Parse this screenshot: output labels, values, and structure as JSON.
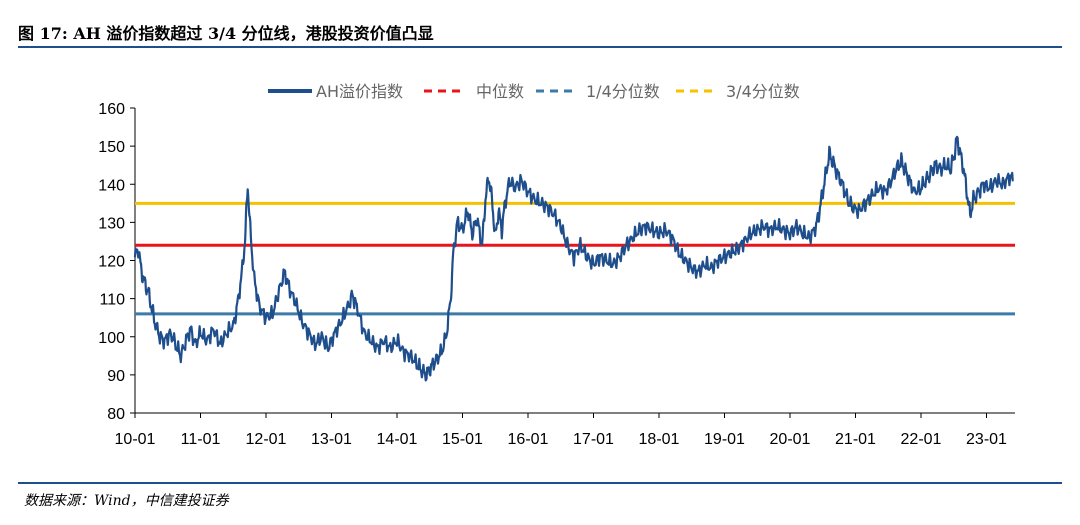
{
  "header": {
    "figure_label": "图 17:",
    "title": "AH 溢价指数超过 3/4 分位线，港股投资价值凸显"
  },
  "source": "数据来源：Wind，中信建投证券",
  "colors": {
    "series": "#1f4e8c",
    "median": "#e8141c",
    "q1": "#3b7ba9",
    "q3": "#f5c100",
    "rule": "#1f4e8c"
  },
  "chart_data": {
    "type": "line",
    "ylim": [
      80,
      160
    ],
    "yticks": [
      "80",
      "90",
      "100",
      "110",
      "120",
      "130",
      "140",
      "150",
      "160"
    ],
    "categories": [
      "10-01",
      "11-01",
      "12-01",
      "13-01",
      "14-01",
      "15-01",
      "16-01",
      "17-01",
      "18-01",
      "19-01",
      "20-01",
      "21-01",
      "22-01",
      "23-01"
    ],
    "legend": {
      "series": "AH溢价指数",
      "median": "中位数",
      "q1": "1/4分位数",
      "q3": "3/4分位数"
    },
    "reference_lines": {
      "median": 124,
      "q1": 106,
      "q3": 135
    },
    "series_name": "AH溢价指数",
    "series": [
      [
        0.0,
        121
      ],
      [
        0.05,
        123
      ],
      [
        0.1,
        117
      ],
      [
        0.15,
        114
      ],
      [
        0.2,
        112
      ],
      [
        0.25,
        108
      ],
      [
        0.3,
        104
      ],
      [
        0.38,
        100
      ],
      [
        0.45,
        99
      ],
      [
        0.55,
        101
      ],
      [
        0.62,
        98
      ],
      [
        0.7,
        95
      ],
      [
        0.78,
        99
      ],
      [
        0.85,
        102
      ],
      [
        0.92,
        98
      ],
      [
        1.0,
        101
      ],
      [
        1.1,
        99
      ],
      [
        1.2,
        102
      ],
      [
        1.3,
        98
      ],
      [
        1.4,
        101
      ],
      [
        1.5,
        103
      ],
      [
        1.55,
        107
      ],
      [
        1.62,
        115
      ],
      [
        1.68,
        125
      ],
      [
        1.72,
        140
      ],
      [
        1.76,
        128
      ],
      [
        1.82,
        115
      ],
      [
        1.9,
        108
      ],
      [
        2.0,
        105
      ],
      [
        2.1,
        106
      ],
      [
        2.2,
        112
      ],
      [
        2.28,
        117
      ],
      [
        2.35,
        113
      ],
      [
        2.45,
        109
      ],
      [
        2.55,
        104
      ],
      [
        2.65,
        101
      ],
      [
        2.75,
        98
      ],
      [
        2.85,
        100
      ],
      [
        2.95,
        97
      ],
      [
        3.05,
        101
      ],
      [
        3.15,
        104
      ],
      [
        3.25,
        108
      ],
      [
        3.32,
        111
      ],
      [
        3.4,
        107
      ],
      [
        3.5,
        101
      ],
      [
        3.6,
        99
      ],
      [
        3.7,
        97
      ],
      [
        3.8,
        99
      ],
      [
        3.9,
        97
      ],
      [
        4.0,
        99
      ],
      [
        4.1,
        96
      ],
      [
        4.2,
        95
      ],
      [
        4.3,
        93
      ],
      [
        4.38,
        91
      ],
      [
        4.45,
        90
      ],
      [
        4.52,
        92
      ],
      [
        4.6,
        94
      ],
      [
        4.68,
        96
      ],
      [
        4.75,
        100
      ],
      [
        4.82,
        110
      ],
      [
        4.86,
        122
      ],
      [
        4.92,
        130
      ],
      [
        5.0,
        128
      ],
      [
        5.08,
        133
      ],
      [
        5.15,
        127
      ],
      [
        5.22,
        131
      ],
      [
        5.3,
        124
      ],
      [
        5.35,
        136
      ],
      [
        5.4,
        142
      ],
      [
        5.45,
        136
      ],
      [
        5.5,
        126
      ],
      [
        5.55,
        133
      ],
      [
        5.6,
        128
      ],
      [
        5.65,
        135
      ],
      [
        5.72,
        141
      ],
      [
        5.8,
        139
      ],
      [
        5.9,
        141
      ],
      [
        6.0,
        138
      ],
      [
        6.1,
        136
      ],
      [
        6.2,
        135
      ],
      [
        6.3,
        134
      ],
      [
        6.4,
        132
      ],
      [
        6.5,
        129
      ],
      [
        6.6,
        124
      ],
      [
        6.7,
        121
      ],
      [
        6.8,
        124
      ],
      [
        6.9,
        121
      ],
      [
        7.0,
        119
      ],
      [
        7.1,
        121
      ],
      [
        7.2,
        120
      ],
      [
        7.3,
        119
      ],
      [
        7.4,
        121
      ],
      [
        7.5,
        124
      ],
      [
        7.6,
        126
      ],
      [
        7.7,
        128
      ],
      [
        7.8,
        129
      ],
      [
        7.9,
        128
      ],
      [
        8.0,
        127
      ],
      [
        8.1,
        128
      ],
      [
        8.2,
        126
      ],
      [
        8.3,
        122
      ],
      [
        8.4,
        120
      ],
      [
        8.5,
        118
      ],
      [
        8.6,
        117
      ],
      [
        8.7,
        119
      ],
      [
        8.8,
        118
      ],
      [
        8.9,
        120
      ],
      [
        9.0,
        121
      ],
      [
        9.1,
        122
      ],
      [
        9.2,
        123
      ],
      [
        9.3,
        125
      ],
      [
        9.4,
        127
      ],
      [
        9.5,
        128
      ],
      [
        9.6,
        129
      ],
      [
        9.7,
        128
      ],
      [
        9.8,
        129
      ],
      [
        9.9,
        128
      ],
      [
        10.0,
        127
      ],
      [
        10.1,
        129
      ],
      [
        10.2,
        127
      ],
      [
        10.3,
        126
      ],
      [
        10.4,
        129
      ],
      [
        10.45,
        133
      ],
      [
        10.5,
        138
      ],
      [
        10.55,
        143
      ],
      [
        10.6,
        148
      ],
      [
        10.65,
        146
      ],
      [
        10.72,
        143
      ],
      [
        10.8,
        140
      ],
      [
        10.88,
        136
      ],
      [
        10.95,
        134
      ],
      [
        11.05,
        133
      ],
      [
        11.15,
        135
      ],
      [
        11.25,
        137
      ],
      [
        11.35,
        139
      ],
      [
        11.45,
        138
      ],
      [
        11.55,
        141
      ],
      [
        11.62,
        144
      ],
      [
        11.7,
        146
      ],
      [
        11.75,
        144
      ],
      [
        11.82,
        141
      ],
      [
        11.9,
        138
      ],
      [
        12.0,
        139
      ],
      [
        12.08,
        141
      ],
      [
        12.15,
        143
      ],
      [
        12.22,
        145
      ],
      [
        12.3,
        144
      ],
      [
        12.38,
        145
      ],
      [
        12.45,
        144
      ],
      [
        12.5,
        147
      ],
      [
        12.55,
        152
      ],
      [
        12.6,
        148
      ],
      [
        12.65,
        144
      ],
      [
        12.7,
        138
      ],
      [
        12.75,
        132
      ],
      [
        12.8,
        136
      ],
      [
        12.88,
        138
      ],
      [
        12.95,
        140
      ],
      [
        13.05,
        139
      ],
      [
        13.15,
        141
      ],
      [
        13.25,
        140
      ],
      [
        13.35,
        142
      ],
      [
        13.4,
        141
      ]
    ]
  }
}
